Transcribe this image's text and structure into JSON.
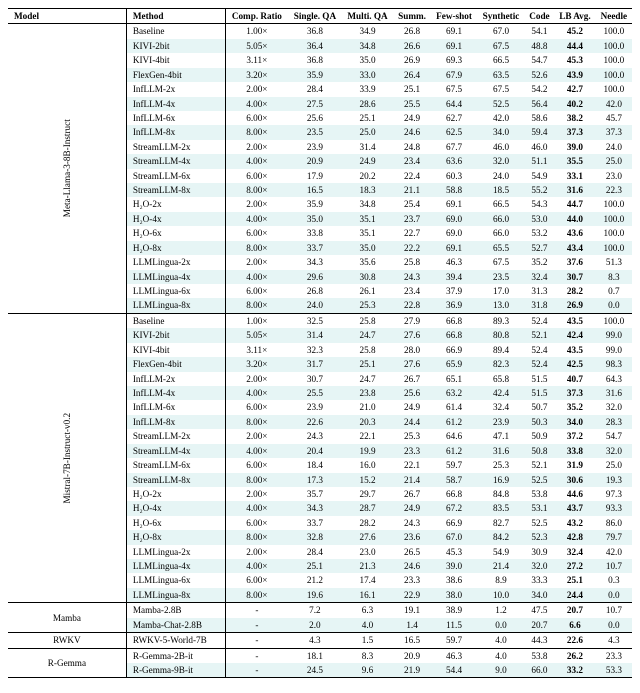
{
  "colors": {
    "stripe": "#e6f5f5",
    "rule": "#000000",
    "text": "#000000",
    "background": "#ffffff"
  },
  "typography": {
    "font_family": "Times New Roman",
    "font_size_pt": 7,
    "header_weight": "bold"
  },
  "header": {
    "model": "Model",
    "method": "Method",
    "comp": "Comp. Ratio",
    "single": "Single. QA",
    "multi": "Multi. QA",
    "summ": "Summ.",
    "few": "Few-shot",
    "syn": "Synthetic",
    "code": "Code",
    "lb": "LB Avg.",
    "needle": "Needle"
  },
  "groups": [
    {
      "model": "Meta-Llama-3-8B-Instruct",
      "rows": [
        {
          "method": "Baseline",
          "comp": "1.00×",
          "single": "36.8",
          "multi": "34.9",
          "summ": "26.8",
          "few": "69.1",
          "syn": "67.0",
          "code": "54.1",
          "lb": "45.2",
          "needle": "100.0"
        },
        {
          "method": "KIVI-2bit",
          "comp": "5.05×",
          "single": "36.4",
          "multi": "34.8",
          "summ": "26.6",
          "few": "69.1",
          "syn": "67.5",
          "code": "48.8",
          "lb": "44.4",
          "needle": "100.0"
        },
        {
          "method": "KIVI-4bit",
          "comp": "3.11×",
          "single": "36.8",
          "multi": "35.0",
          "summ": "26.9",
          "few": "69.3",
          "syn": "66.5",
          "code": "54.7",
          "lb": "45.3",
          "needle": "100.0"
        },
        {
          "method": "FlexGen-4bit",
          "comp": "3.20×",
          "single": "35.9",
          "multi": "33.0",
          "summ": "26.4",
          "few": "67.9",
          "syn": "63.5",
          "code": "52.6",
          "lb": "43.9",
          "needle": "100.0"
        },
        {
          "method": "InfLLM-2x",
          "comp": "2.00×",
          "single": "28.4",
          "multi": "33.9",
          "summ": "25.1",
          "few": "67.5",
          "syn": "67.5",
          "code": "54.2",
          "lb": "42.7",
          "needle": "100.0"
        },
        {
          "method": "InfLLM-4x",
          "comp": "4.00×",
          "single": "27.5",
          "multi": "28.6",
          "summ": "25.5",
          "few": "64.4",
          "syn": "52.5",
          "code": "56.4",
          "lb": "40.2",
          "needle": "42.0"
        },
        {
          "method": "InfLLM-6x",
          "comp": "6.00×",
          "single": "25.6",
          "multi": "25.1",
          "summ": "24.9",
          "few": "62.7",
          "syn": "42.0",
          "code": "58.6",
          "lb": "38.2",
          "needle": "45.7"
        },
        {
          "method": "InfLLM-8x",
          "comp": "8.00×",
          "single": "23.5",
          "multi": "25.0",
          "summ": "24.6",
          "few": "62.5",
          "syn": "34.0",
          "code": "59.4",
          "lb": "37.3",
          "needle": "37.3"
        },
        {
          "method": "StreamLLM-2x",
          "comp": "2.00×",
          "single": "23.9",
          "multi": "31.4",
          "summ": "24.8",
          "few": "67.7",
          "syn": "46.0",
          "code": "46.0",
          "lb": "39.0",
          "needle": "24.0"
        },
        {
          "method": "StreamLLM-4x",
          "comp": "4.00×",
          "single": "20.9",
          "multi": "24.9",
          "summ": "23.4",
          "few": "63.6",
          "syn": "32.0",
          "code": "51.1",
          "lb": "35.5",
          "needle": "25.0"
        },
        {
          "method": "StreamLLM-6x",
          "comp": "6.00×",
          "single": "17.9",
          "multi": "20.2",
          "summ": "22.4",
          "few": "60.3",
          "syn": "24.0",
          "code": "54.9",
          "lb": "33.1",
          "needle": "23.0"
        },
        {
          "method": "StreamLLM-8x",
          "comp": "8.00×",
          "single": "16.5",
          "multi": "18.3",
          "summ": "21.1",
          "few": "58.8",
          "syn": "18.5",
          "code": "55.2",
          "lb": "31.6",
          "needle": "22.3"
        },
        {
          "method": "H₂O-2x",
          "comp": "2.00×",
          "single": "35.9",
          "multi": "34.8",
          "summ": "25.4",
          "few": "69.1",
          "syn": "66.5",
          "code": "54.3",
          "lb": "44.7",
          "needle": "100.0"
        },
        {
          "method": "H₂O-4x",
          "comp": "4.00×",
          "single": "35.0",
          "multi": "35.1",
          "summ": "23.7",
          "few": "69.0",
          "syn": "66.0",
          "code": "53.0",
          "lb": "44.0",
          "needle": "100.0"
        },
        {
          "method": "H₂O-6x",
          "comp": "6.00×",
          "single": "33.8",
          "multi": "35.1",
          "summ": "22.7",
          "few": "69.0",
          "syn": "66.0",
          "code": "53.2",
          "lb": "43.6",
          "needle": "100.0"
        },
        {
          "method": "H₂O-8x",
          "comp": "8.00×",
          "single": "33.7",
          "multi": "35.0",
          "summ": "22.2",
          "few": "69.1",
          "syn": "65.5",
          "code": "52.7",
          "lb": "43.4",
          "needle": "100.0"
        },
        {
          "method": "LLMLingua-2x",
          "comp": "2.00×",
          "single": "34.3",
          "multi": "35.6",
          "summ": "25.8",
          "few": "46.3",
          "syn": "67.5",
          "code": "35.2",
          "lb": "37.6",
          "needle": "51.3"
        },
        {
          "method": "LLMLingua-4x",
          "comp": "4.00×",
          "single": "29.6",
          "multi": "30.8",
          "summ": "24.3",
          "few": "39.4",
          "syn": "23.5",
          "code": "32.4",
          "lb": "30.7",
          "needle": "8.3"
        },
        {
          "method": "LLMLingua-6x",
          "comp": "6.00×",
          "single": "26.8",
          "multi": "26.1",
          "summ": "23.4",
          "few": "37.9",
          "syn": "17.0",
          "code": "31.3",
          "lb": "28.2",
          "needle": "0.7"
        },
        {
          "method": "LLMLingua-8x",
          "comp": "8.00×",
          "single": "24.0",
          "multi": "25.3",
          "summ": "22.8",
          "few": "36.9",
          "syn": "13.0",
          "code": "31.8",
          "lb": "26.9",
          "needle": "0.0"
        }
      ]
    },
    {
      "model": "Mistral-7B-Instruct-v0.2",
      "rows": [
        {
          "method": "Baseline",
          "comp": "1.00×",
          "single": "32.5",
          "multi": "25.8",
          "summ": "27.9",
          "few": "66.8",
          "syn": "89.3",
          "code": "52.4",
          "lb": "43.5",
          "needle": "100.0"
        },
        {
          "method": "KIVI-2bit",
          "comp": "5.05×",
          "single": "31.4",
          "multi": "24.7",
          "summ": "27.6",
          "few": "66.8",
          "syn": "80.8",
          "code": "52.1",
          "lb": "42.4",
          "needle": "99.0"
        },
        {
          "method": "KIVI-4bit",
          "comp": "3.11×",
          "single": "32.3",
          "multi": "25.8",
          "summ": "28.0",
          "few": "66.9",
          "syn": "89.4",
          "code": "52.4",
          "lb": "43.5",
          "needle": "99.0"
        },
        {
          "method": "FlexGen-4bit",
          "comp": "3.20×",
          "single": "31.7",
          "multi": "25.1",
          "summ": "27.6",
          "few": "65.9",
          "syn": "82.3",
          "code": "52.4",
          "lb": "42.5",
          "needle": "98.3"
        },
        {
          "method": "InfLLM-2x",
          "comp": "2.00×",
          "single": "30.7",
          "multi": "24.7",
          "summ": "26.7",
          "few": "65.1",
          "syn": "65.8",
          "code": "51.5",
          "lb": "40.7",
          "needle": "64.3"
        },
        {
          "method": "InfLLM-4x",
          "comp": "4.00×",
          "single": "25.5",
          "multi": "23.8",
          "summ": "25.6",
          "few": "63.2",
          "syn": "42.4",
          "code": "51.5",
          "lb": "37.3",
          "needle": "31.6"
        },
        {
          "method": "InfLLM-6x",
          "comp": "6.00×",
          "single": "23.9",
          "multi": "21.0",
          "summ": "24.9",
          "few": "61.4",
          "syn": "32.4",
          "code": "50.7",
          "lb": "35.2",
          "needle": "32.0"
        },
        {
          "method": "InfLLM-8x",
          "comp": "8.00×",
          "single": "22.6",
          "multi": "20.3",
          "summ": "24.4",
          "few": "61.2",
          "syn": "23.9",
          "code": "50.3",
          "lb": "34.0",
          "needle": "28.3"
        },
        {
          "method": "StreamLLM-2x",
          "comp": "2.00×",
          "single": "24.3",
          "multi": "22.1",
          "summ": "25.3",
          "few": "64.6",
          "syn": "47.1",
          "code": "50.9",
          "lb": "37.2",
          "needle": "54.7"
        },
        {
          "method": "StreamLLM-4x",
          "comp": "4.00×",
          "single": "20.4",
          "multi": "19.9",
          "summ": "23.3",
          "few": "61.2",
          "syn": "31.6",
          "code": "50.8",
          "lb": "33.8",
          "needle": "32.0"
        },
        {
          "method": "StreamLLM-6x",
          "comp": "6.00×",
          "single": "18.4",
          "multi": "16.0",
          "summ": "22.1",
          "few": "59.7",
          "syn": "25.3",
          "code": "52.1",
          "lb": "31.9",
          "needle": "25.0"
        },
        {
          "method": "StreamLLM-8x",
          "comp": "8.00×",
          "single": "17.3",
          "multi": "15.2",
          "summ": "21.4",
          "few": "58.7",
          "syn": "16.9",
          "code": "52.5",
          "lb": "30.6",
          "needle": "19.3"
        },
        {
          "method": "H₂O-2x",
          "comp": "2.00×",
          "single": "35.7",
          "multi": "29.7",
          "summ": "26.7",
          "few": "66.8",
          "syn": "84.8",
          "code": "53.8",
          "lb": "44.6",
          "needle": "97.3"
        },
        {
          "method": "H₂O-4x",
          "comp": "4.00×",
          "single": "34.3",
          "multi": "28.7",
          "summ": "24.9",
          "few": "67.2",
          "syn": "83.5",
          "code": "53.1",
          "lb": "43.7",
          "needle": "93.3"
        },
        {
          "method": "H₂O-6x",
          "comp": "6.00×",
          "single": "33.7",
          "multi": "28.2",
          "summ": "24.3",
          "few": "66.9",
          "syn": "82.7",
          "code": "52.5",
          "lb": "43.2",
          "needle": "86.0"
        },
        {
          "method": "H₂O-8x",
          "comp": "8.00×",
          "single": "32.8",
          "multi": "27.6",
          "summ": "23.6",
          "few": "67.0",
          "syn": "84.2",
          "code": "52.3",
          "lb": "42.8",
          "needle": "79.7"
        },
        {
          "method": "LLMLingua-2x",
          "comp": "2.00×",
          "single": "28.4",
          "multi": "23.0",
          "summ": "26.5",
          "few": "45.3",
          "syn": "54.9",
          "code": "30.9",
          "lb": "32.4",
          "needle": "42.0"
        },
        {
          "method": "LLMLingua-4x",
          "comp": "4.00×",
          "single": "25.1",
          "multi": "21.3",
          "summ": "24.6",
          "few": "39.0",
          "syn": "21.4",
          "code": "32.0",
          "lb": "27.2",
          "needle": "10.7"
        },
        {
          "method": "LLMLingua-6x",
          "comp": "6.00×",
          "single": "21.2",
          "multi": "17.4",
          "summ": "23.3",
          "few": "38.6",
          "syn": "8.9",
          "code": "33.3",
          "lb": "25.1",
          "needle": "0.3"
        },
        {
          "method": "LLMLingua-8x",
          "comp": "8.00×",
          "single": "19.6",
          "multi": "16.1",
          "summ": "22.9",
          "few": "38.0",
          "syn": "10.0",
          "code": "34.0",
          "lb": "24.4",
          "needle": "0.0"
        }
      ]
    },
    {
      "model": "Mamba",
      "rows": [
        {
          "method": "Mamba-2.8B",
          "comp": "-",
          "single": "7.2",
          "multi": "6.3",
          "summ": "19.1",
          "few": "38.9",
          "syn": "1.2",
          "code": "47.5",
          "lb": "20.7",
          "needle": "10.7"
        },
        {
          "method": "Mamba-Chat-2.8B",
          "comp": "-",
          "single": "2.0",
          "multi": "4.0",
          "summ": "1.4",
          "few": "11.5",
          "syn": "0.0",
          "code": "20.7",
          "lb": "6.6",
          "needle": "0.0"
        }
      ]
    },
    {
      "model": "RWKV",
      "rows": [
        {
          "method": "RWKV-5-World-7B",
          "comp": "-",
          "single": "4.3",
          "multi": "1.5",
          "summ": "16.5",
          "few": "59.7",
          "syn": "4.0",
          "code": "44.3",
          "lb": "22.6",
          "needle": "4.3"
        }
      ]
    },
    {
      "model": "R-Gemma",
      "rows": [
        {
          "method": "R-Gemma-2B-it",
          "comp": "-",
          "single": "18.1",
          "multi": "8.3",
          "summ": "20.9",
          "few": "46.3",
          "syn": "4.0",
          "code": "53.8",
          "lb": "26.2",
          "needle": "23.3"
        },
        {
          "method": "R-Gemma-9B-it",
          "comp": "-",
          "single": "24.5",
          "multi": "9.6",
          "summ": "21.9",
          "few": "54.4",
          "syn": "9.0",
          "code": "66.0",
          "lb": "33.2",
          "needle": "53.3"
        }
      ]
    }
  ]
}
